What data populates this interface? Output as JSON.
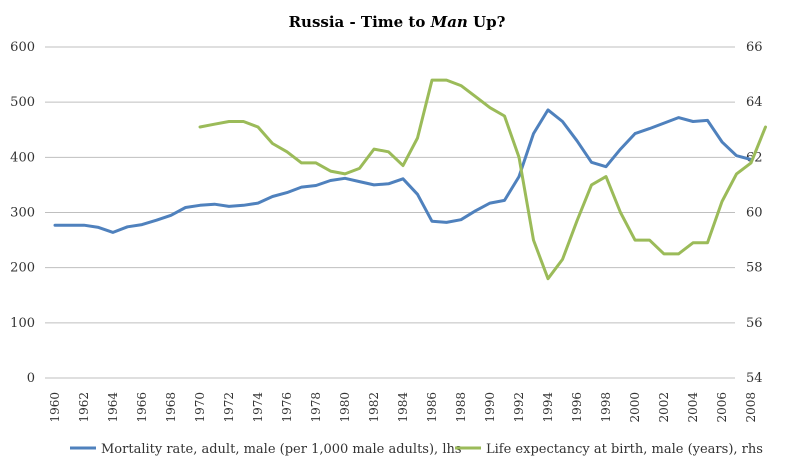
{
  "chart_data": {
    "type": "line",
    "title_parts": [
      "Russia - Time to ",
      "Man",
      " Up?"
    ],
    "x": [
      1960,
      1961,
      1962,
      1963,
      1964,
      1965,
      1966,
      1967,
      1968,
      1969,
      1970,
      1971,
      1972,
      1973,
      1974,
      1975,
      1976,
      1977,
      1978,
      1979,
      1980,
      1981,
      1982,
      1983,
      1984,
      1985,
      1986,
      1987,
      1988,
      1989,
      1990,
      1991,
      1992,
      1993,
      1994,
      1995,
      1996,
      1997,
      1998,
      1999,
      2000,
      2001,
      2002,
      2003,
      2004,
      2005,
      2006,
      2007,
      2008,
      2009
    ],
    "x_tick_labels": [
      "1960",
      "1962",
      "1964",
      "1966",
      "1968",
      "1970",
      "1972",
      "1974",
      "1976",
      "1978",
      "1980",
      "1982",
      "1984",
      "1986",
      "1988",
      "1990",
      "1992",
      "1994",
      "1996",
      "1998",
      "2000",
      "2002",
      "2004",
      "2006",
      "2008"
    ],
    "y_left": {
      "ticks": [
        "0",
        "100",
        "200",
        "300",
        "400",
        "500",
        "600"
      ],
      "range": [
        0,
        600
      ]
    },
    "y_right": {
      "ticks": [
        "54",
        "56",
        "58",
        "60",
        "62",
        "64",
        "66"
      ],
      "range": [
        54,
        66
      ]
    },
    "grid": true,
    "legend_position": "bottom",
    "series": [
      {
        "name": "Mortality rate, adult, male (per 1,000 male adults), lhs",
        "axis": "left",
        "color": "#4f81bd",
        "values": [
          277,
          277,
          277,
          273,
          264,
          274,
          278,
          286,
          295,
          309,
          313,
          315,
          311,
          313,
          317,
          329,
          336,
          346,
          349,
          358,
          362,
          356,
          350,
          352,
          361,
          333,
          284,
          282,
          287,
          303,
          317,
          322,
          365,
          443,
          486,
          465,
          430,
          391,
          383,
          415,
          443,
          452,
          462,
          472,
          465,
          467,
          428,
          403,
          396,
          null
        ]
      },
      {
        "name": "Life expectancy at birth, male (years), rhs",
        "axis": "right",
        "color": "#9bbb59",
        "values": [
          null,
          null,
          null,
          null,
          null,
          null,
          null,
          null,
          null,
          null,
          63.1,
          63.2,
          63.3,
          63.3,
          63.1,
          62.5,
          62.2,
          61.8,
          61.8,
          61.5,
          61.4,
          61.6,
          62.3,
          62.2,
          61.7,
          62.7,
          64.8,
          64.8,
          64.6,
          64.2,
          63.8,
          63.5,
          62.0,
          59.0,
          57.6,
          58.3,
          59.7,
          61.0,
          61.3,
          60.0,
          59.0,
          59.0,
          58.5,
          58.5,
          58.9,
          58.9,
          60.4,
          61.4,
          61.8,
          63.1
        ]
      }
    ]
  }
}
